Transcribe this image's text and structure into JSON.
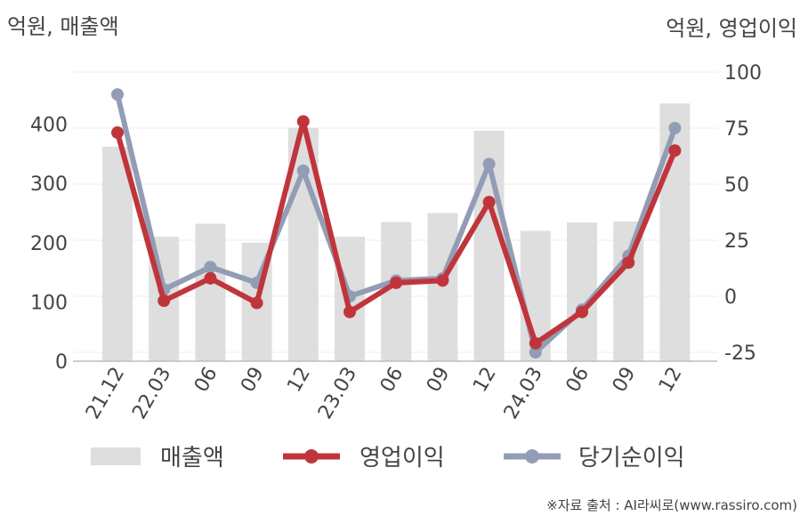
{
  "chart_data": {
    "type": "bar+line",
    "categories": [
      "21.12",
      "22.03",
      "06",
      "09",
      "12",
      "23.03",
      "06",
      "09",
      "12",
      "24.03",
      "06",
      "09",
      "12"
    ],
    "left_axis": {
      "unit_label": "억원, 매출액",
      "range": [
        0,
        500
      ],
      "ticks": [
        0,
        100,
        200,
        300,
        400
      ]
    },
    "right_axis": {
      "unit_label": "억원, 영업이익",
      "range": [
        -25,
        100
      ],
      "ticks": [
        -25,
        0,
        25,
        50,
        75,
        100
      ]
    },
    "bars": {
      "name": "매출액",
      "axis": "left",
      "color": "#dedede",
      "values": [
        362,
        210,
        232,
        200,
        394,
        210,
        235,
        250,
        389,
        220,
        234,
        236,
        435
      ]
    },
    "series": [
      {
        "name": "영업이익",
        "axis": "right",
        "color": "#c0353b",
        "values": [
          73,
          -2,
          8,
          -3,
          78,
          -7,
          6,
          7,
          42,
          -21,
          -7,
          15,
          65
        ]
      },
      {
        "name": "당기순이익",
        "axis": "right",
        "color": "#929db5",
        "values": [
          90,
          3,
          13,
          6,
          56,
          0,
          7,
          8,
          59,
          -25,
          -6,
          18,
          75
        ]
      }
    ],
    "grid": true,
    "legend_position": "bottom"
  },
  "source": "※자료 출처 : AI라씨로(www.rassiro.com)"
}
